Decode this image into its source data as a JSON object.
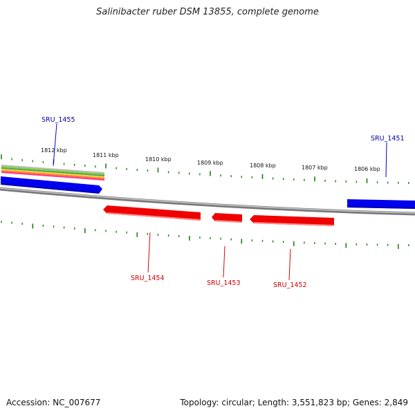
{
  "title": "Salinibacter ruber DSM 13855, complete genome",
  "footer": {
    "accession": "Accession: NC_007677",
    "summary": "Topology: circular; Length: 3,551,823 bp; Genes: 2,849"
  },
  "colors": {
    "forward_gene": "#0000ee",
    "reverse_gene": "#ee0000",
    "forward_label": "#000099",
    "reverse_label": "#cc0000",
    "tick": "#1a7f1a",
    "backbone": "#888888"
  },
  "scale_ticks": [
    "1812 kbp",
    "1811 kbp",
    "1810 kbp",
    "1809 kbp",
    "1808 kbp",
    "1807 kbp",
    "1806 kbp"
  ],
  "genes": [
    {
      "id": "SRU_1455",
      "strand": "forward"
    },
    {
      "id": "SRU_1454",
      "strand": "reverse"
    },
    {
      "id": "SRU_1453",
      "strand": "reverse"
    },
    {
      "id": "SRU_1452",
      "strand": "reverse"
    },
    {
      "id": "SRU_1451",
      "strand": "forward"
    }
  ]
}
